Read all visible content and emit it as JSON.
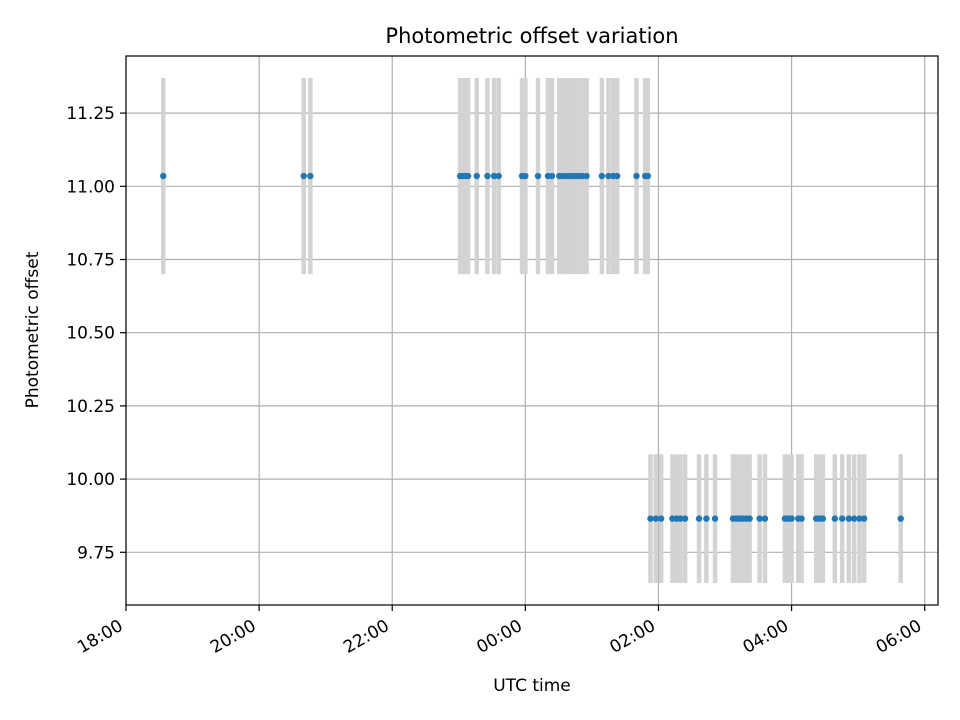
{
  "chart_data": {
    "type": "scatter",
    "title": "Photometric offset variation",
    "xlabel": "UTC time",
    "ylabel": "Photometric offset",
    "x_unit": "hours",
    "xlim": [
      18.0,
      30.2
    ],
    "ylim": [
      9.57,
      11.445
    ],
    "xticks": [
      {
        "value": 18,
        "label": "18:00"
      },
      {
        "value": 20,
        "label": "20:00"
      },
      {
        "value": 22,
        "label": "22:00"
      },
      {
        "value": 24,
        "label": "00:00"
      },
      {
        "value": 26,
        "label": "02:00"
      },
      {
        "value": 28,
        "label": "04:00"
      },
      {
        "value": 30,
        "label": "06:00"
      }
    ],
    "yticks": [
      {
        "value": 9.75,
        "label": "9.75"
      },
      {
        "value": 10.0,
        "label": "10.00"
      },
      {
        "value": 10.25,
        "label": "10.25"
      },
      {
        "value": 10.5,
        "label": "10.50"
      },
      {
        "value": 10.75,
        "label": "10.75"
      },
      {
        "value": 11.0,
        "label": "11.00"
      },
      {
        "value": 11.25,
        "label": "11.25"
      }
    ],
    "grid": true,
    "point_color": "#1f77b4",
    "error_color": "#d3d3d3",
    "series": [
      {
        "y": 11.035,
        "error": 0.335,
        "x": [
          18.56,
          20.67,
          20.77,
          23.02,
          23.06,
          23.1,
          23.14,
          23.27,
          23.43,
          23.53,
          23.6,
          23.95,
          24.0,
          24.19,
          24.34,
          24.4,
          24.51,
          24.56,
          24.61,
          24.66,
          24.71,
          24.76,
          24.81,
          24.86,
          24.92,
          25.15,
          25.25,
          25.32,
          25.38,
          25.67,
          25.8,
          25.84
        ]
      },
      {
        "y": 9.865,
        "error": 0.22,
        "x": [
          25.88,
          25.96,
          26.04,
          26.21,
          26.27,
          26.33,
          26.4,
          26.61,
          26.72,
          26.85,
          27.12,
          27.17,
          27.22,
          27.27,
          27.32,
          27.37,
          27.52,
          27.6,
          27.9,
          27.95,
          28.0,
          28.1,
          28.15,
          28.37,
          28.42,
          28.47,
          28.65,
          28.76,
          28.86,
          28.94,
          29.02,
          29.09,
          29.64
        ]
      }
    ]
  }
}
